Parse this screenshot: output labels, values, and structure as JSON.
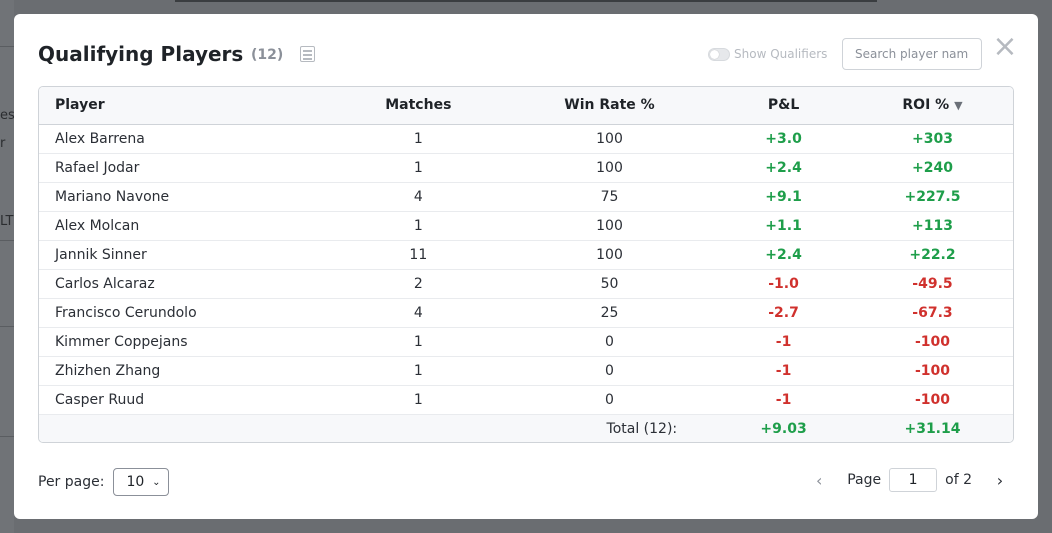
{
  "background": {
    "fragments": [
      "es",
      "r",
      "LTI"
    ]
  },
  "modal": {
    "title": "Qualifying Players",
    "count": "(12)",
    "table_icon": "table-icon",
    "toggle_label": "Show Qualifiers",
    "search_placeholder": "Search player name...",
    "close_label": "×"
  },
  "table": {
    "headers": {
      "player": "Player",
      "matches": "Matches",
      "win_rate": "Win Rate %",
      "pl": "P&L",
      "roi": "ROI %",
      "sort_indicator": "▼"
    },
    "rows": [
      {
        "player": "Alex Barrena",
        "matches": "1",
        "win_rate": "100",
        "pl": "+3.0",
        "roi": "+303",
        "sign": "pos"
      },
      {
        "player": "Rafael Jodar",
        "matches": "1",
        "win_rate": "100",
        "pl": "+2.4",
        "roi": "+240",
        "sign": "pos"
      },
      {
        "player": "Mariano Navone",
        "matches": "4",
        "win_rate": "75",
        "pl": "+9.1",
        "roi": "+227.5",
        "sign": "pos"
      },
      {
        "player": "Alex Molcan",
        "matches": "1",
        "win_rate": "100",
        "pl": "+1.1",
        "roi": "+113",
        "sign": "pos"
      },
      {
        "player": "Jannik Sinner",
        "matches": "11",
        "win_rate": "100",
        "pl": "+2.4",
        "roi": "+22.2",
        "sign": "pos"
      },
      {
        "player": "Carlos Alcaraz",
        "matches": "2",
        "win_rate": "50",
        "pl": "-1.0",
        "roi": "-49.5",
        "sign": "neg"
      },
      {
        "player": "Francisco Cerundolo",
        "matches": "4",
        "win_rate": "25",
        "pl": "-2.7",
        "roi": "-67.3",
        "sign": "neg"
      },
      {
        "player": "Kimmer Coppejans",
        "matches": "1",
        "win_rate": "0",
        "pl": "-1",
        "roi": "-100",
        "sign": "neg"
      },
      {
        "player": "Zhizhen Zhang",
        "matches": "1",
        "win_rate": "0",
        "pl": "-1",
        "roi": "-100",
        "sign": "neg"
      },
      {
        "player": "Casper Ruud",
        "matches": "1",
        "win_rate": "0",
        "pl": "-1",
        "roi": "-100",
        "sign": "neg"
      }
    ],
    "total": {
      "label": "Total (12):",
      "pl": "+9.03",
      "roi": "+31.14"
    }
  },
  "footer": {
    "per_page_label": "Per page:",
    "per_page_value": "10",
    "page_label": "Page",
    "page_value": "1",
    "of_label": "of 2"
  },
  "colors": {
    "positive": "#1e9e4a",
    "negative": "#d0312d"
  }
}
